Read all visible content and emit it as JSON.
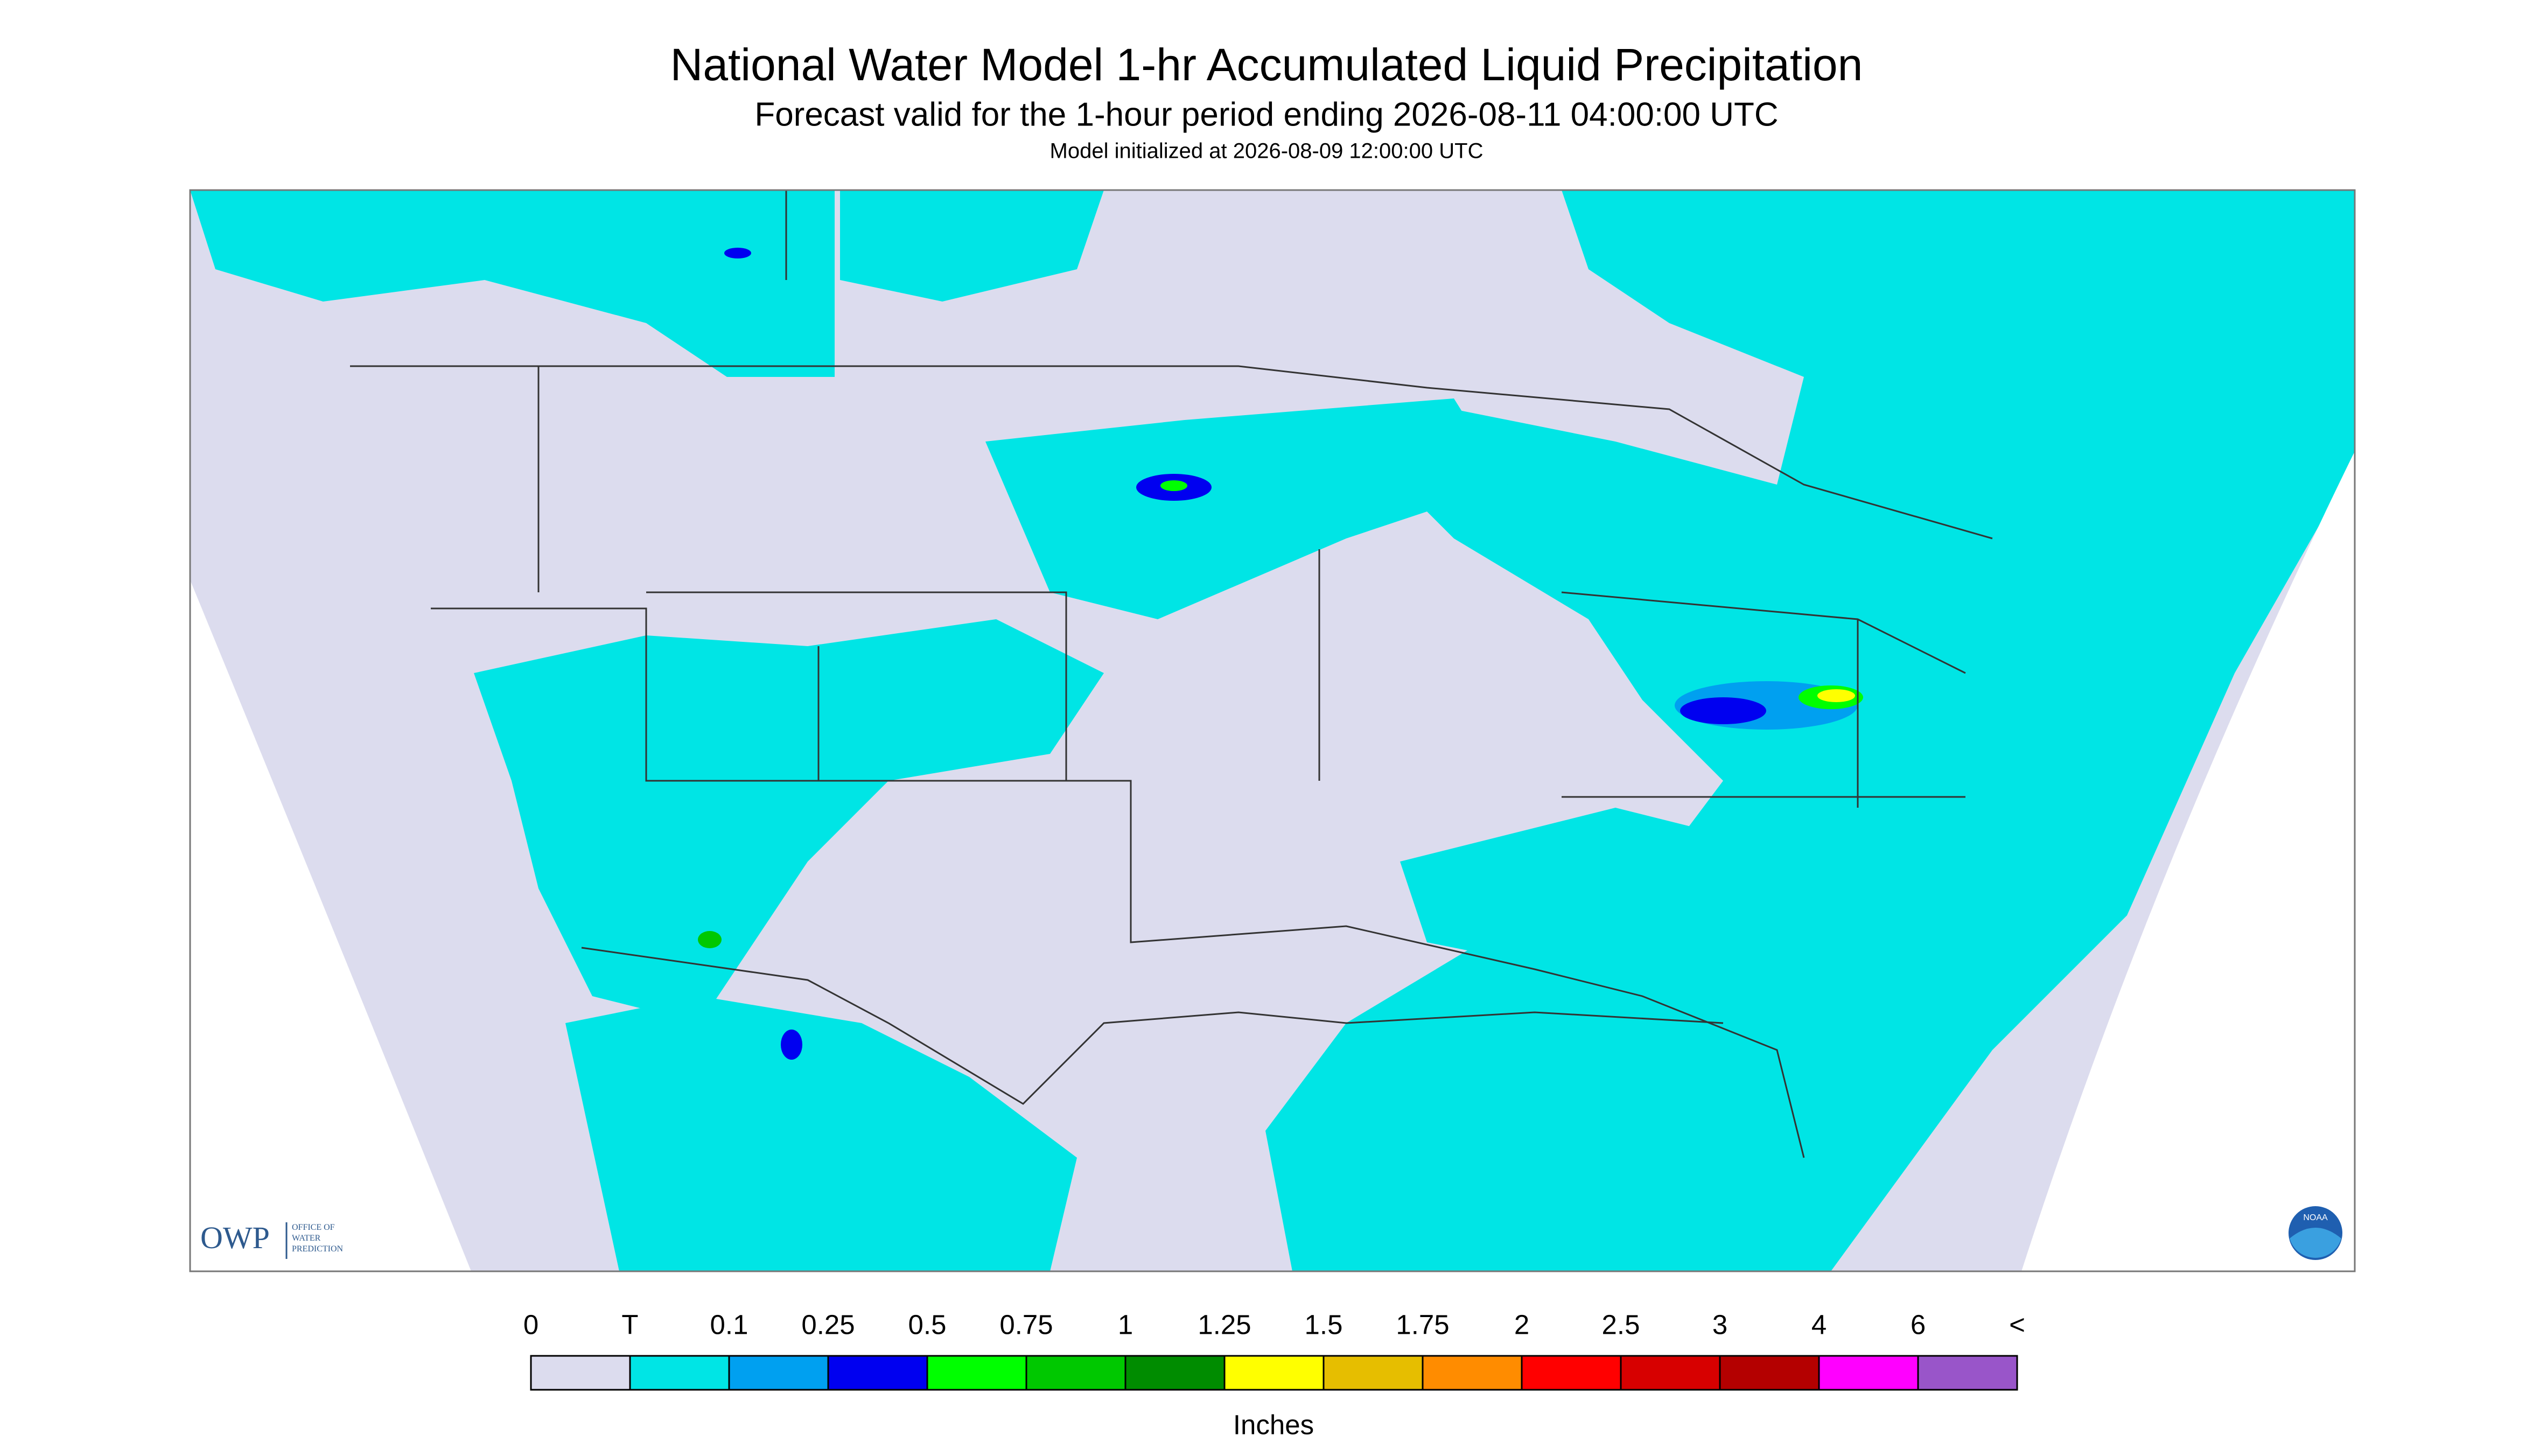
{
  "header": {
    "title": "National Water Model 1-hr Accumulated Liquid Precipitation",
    "subtitle": "Forecast valid for the 1-hour period ending 2026-08-11 04:00:00 UTC",
    "initialized": "Model initialized at 2026-08-09 12:00:00 UTC"
  },
  "legend": {
    "labels": [
      "0",
      "T",
      "0.1",
      "0.25",
      "0.5",
      "0.75",
      "1",
      "1.25",
      "1.5",
      "1.75",
      "2",
      "2.5",
      "3",
      "4",
      "6",
      "<"
    ],
    "colors": [
      "#dcdcee",
      "#00e5e5",
      "#00a0f0",
      "#0000f0",
      "#00ff00",
      "#00c800",
      "#008c00",
      "#ffff00",
      "#e6be00",
      "#ff8c00",
      "#ff0000",
      "#d70000",
      "#b40000",
      "#ff00ff",
      "#9955c9"
    ],
    "units": "Inches"
  },
  "logos": {
    "owp": "OWP",
    "owp_text": [
      "OFFICE OF",
      "WATER",
      "PREDICTION"
    ],
    "noaa": "NOAA"
  }
}
